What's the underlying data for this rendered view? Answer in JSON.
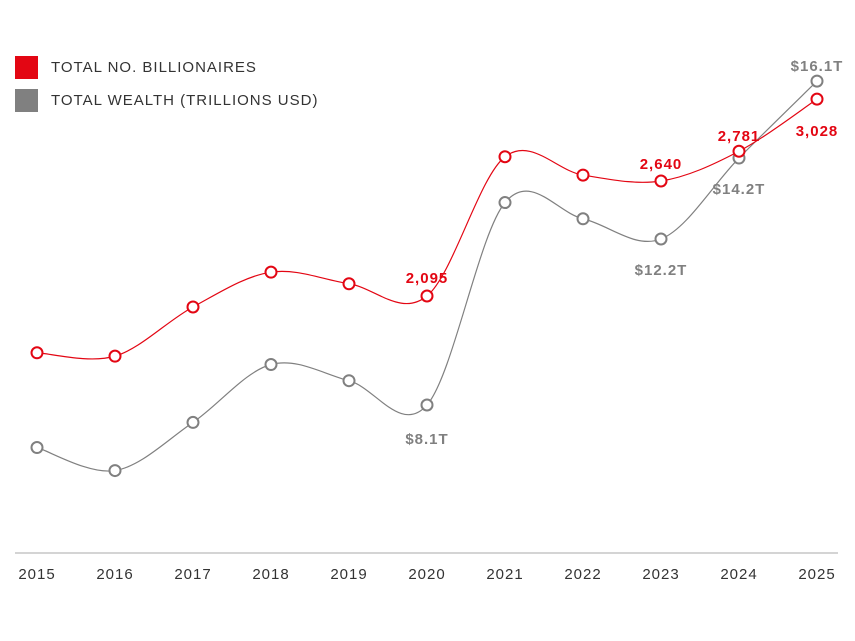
{
  "chart_data": {
    "type": "line",
    "title": "",
    "xlabel": "",
    "ylabel": "",
    "grid": false,
    "legend_position": "top-left",
    "categories": [
      "2015",
      "2016",
      "2017",
      "2018",
      "2019",
      "2020",
      "2021",
      "2022",
      "2023",
      "2024",
      "2025"
    ],
    "series": [
      {
        "name": "TOTAL NO. BILLIONAIRES",
        "color": "#e30613",
        "values": [
          1826,
          1810,
          2043,
          2208,
          2153,
          2095,
          2755,
          2668,
          2640,
          2781,
          3028
        ],
        "labels": [
          null,
          null,
          null,
          null,
          null,
          "2,095",
          null,
          null,
          "2,640",
          "2,781",
          "3,028"
        ]
      },
      {
        "name": "TOTAL WEALTH (TRILLIONS USD)",
        "color": "#808080",
        "values": [
          7.05,
          6.48,
          7.67,
          9.1,
          8.7,
          8.1,
          13.1,
          12.7,
          12.2,
          14.2,
          16.1
        ],
        "labels": [
          null,
          null,
          null,
          null,
          null,
          "$8.1T",
          null,
          null,
          "$12.2T",
          "$14.2T",
          "$16.1T"
        ]
      }
    ]
  }
}
